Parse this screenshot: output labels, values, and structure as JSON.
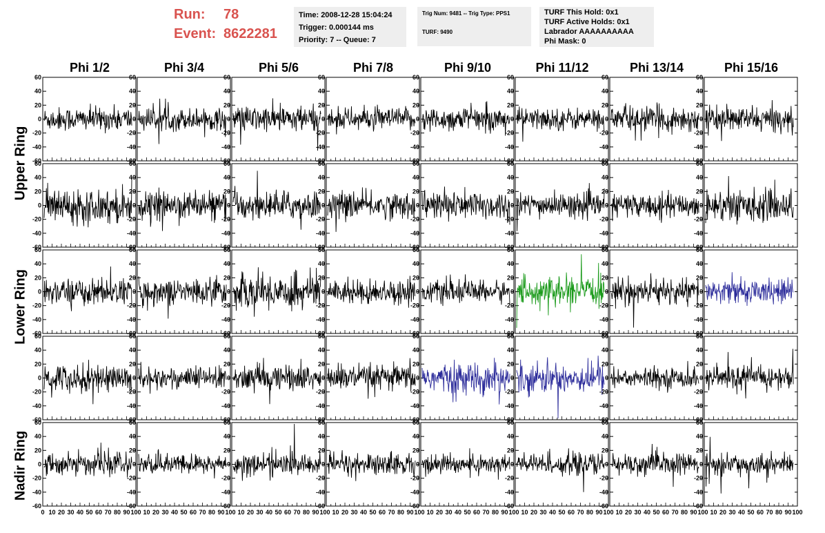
{
  "header": {
    "run_label": "Run:",
    "run_value": "78",
    "event_label": "Event:",
    "event_value": "8622281",
    "time_text": "Time: 2008-12-28 15:04:24",
    "trigger_text": "Trigger: 0.000144 ms",
    "priority_text": "Priority: 7 -- Queue: 7",
    "trig_num_text": "Trig Num: 9481 -- Trig Type: PPS1",
    "turf_text": "TURF: 9490",
    "turf_this_hold": "TURF This Hold: 0x1",
    "turf_active_holds": "TURF Active Holds: 0x1",
    "labrador_text": "Labrador AAAAAAAAAA",
    "phi_mask_text": "Phi Mask: 0"
  },
  "colors": {
    "header_red": "#d9534f",
    "trace_default": "#000000",
    "trace_green": "#1a9a1a",
    "trace_blue": "#2b2b9a"
  },
  "chart_data": {
    "type": "line",
    "columns": [
      "Phi 1/2",
      "Phi 3/4",
      "Phi 5/6",
      "Phi 7/8",
      "Phi 9/10",
      "Phi 11/12",
      "Phi 13/14",
      "Phi 15/16"
    ],
    "ring_labels": [
      "Upper Ring",
      "Lower Ring",
      "Nadir Ring"
    ],
    "rows": 5,
    "xlim": [
      0,
      100
    ],
    "ylim": [
      -60,
      60
    ],
    "y_ticks": [
      -60,
      -40,
      -20,
      0,
      20,
      40,
      60
    ],
    "x_ticks": [
      0,
      10,
      20,
      30,
      40,
      50,
      60,
      70,
      80,
      90,
      100
    ],
    "samples_per_trace": 100,
    "trace_amplitudes": [
      [
        12,
        11,
        13,
        11,
        12,
        11,
        13,
        12
      ],
      [
        17,
        14,
        14,
        13,
        15,
        12,
        12,
        16
      ],
      [
        13,
        13,
        18,
        12,
        11,
        14,
        13,
        12
      ],
      [
        14,
        11,
        13,
        13,
        15,
        15,
        10,
        12
      ],
      [
        11,
        10,
        11,
        11,
        10,
        11,
        11,
        10
      ]
    ],
    "trace_colors": [
      [
        "default",
        "default",
        "default",
        "default",
        "default",
        "default",
        "default",
        "default"
      ],
      [
        "default",
        "default",
        "default",
        "default",
        "default",
        "default",
        "default",
        "default"
      ],
      [
        "default",
        "default",
        "default",
        "default",
        "default",
        "green",
        "default",
        "blue"
      ],
      [
        "default",
        "default",
        "default",
        "default",
        "blue",
        "blue",
        "default",
        "default"
      ],
      [
        "default",
        "default",
        "default",
        "default",
        "default",
        "default",
        "default",
        "default"
      ]
    ]
  }
}
